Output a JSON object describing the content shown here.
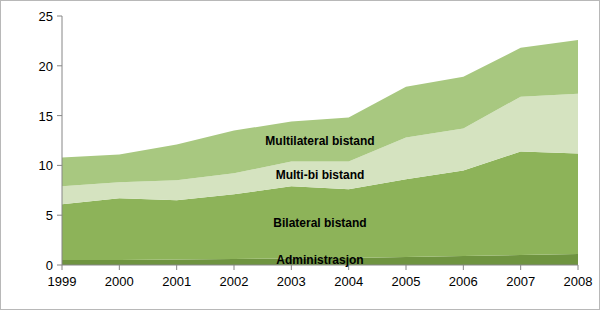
{
  "chart_data": {
    "type": "area",
    "stacked": true,
    "categories": [
      "1999",
      "2000",
      "2001",
      "2002",
      "2003",
      "2004",
      "2005",
      "2006",
      "2007",
      "2008"
    ],
    "series": [
      {
        "name": "Administrasjon",
        "color": "#6f9440",
        "values": [
          0.5,
          0.5,
          0.55,
          0.6,
          0.65,
          0.7,
          0.8,
          0.9,
          1.0,
          1.1
        ]
      },
      {
        "name": "Bilateral bistand",
        "color": "#8db359",
        "values": [
          5.6,
          6.2,
          5.95,
          6.5,
          7.25,
          6.9,
          7.8,
          8.6,
          10.4,
          10.1
        ]
      },
      {
        "name": "Multi-bi bistand",
        "color": "#d5e3c0",
        "values": [
          1.8,
          1.6,
          2.0,
          2.1,
          2.5,
          2.8,
          4.2,
          4.2,
          5.5,
          6.0
        ]
      },
      {
        "name": "Multilateral bistand",
        "color": "#a8c880",
        "values": [
          2.9,
          2.8,
          3.6,
          4.3,
          4.0,
          4.4,
          5.1,
          5.2,
          4.9,
          5.4
        ]
      }
    ],
    "ylim": [
      0,
      25
    ],
    "yticks": [
      0,
      5,
      10,
      15,
      20,
      25
    ],
    "grid": false
  }
}
